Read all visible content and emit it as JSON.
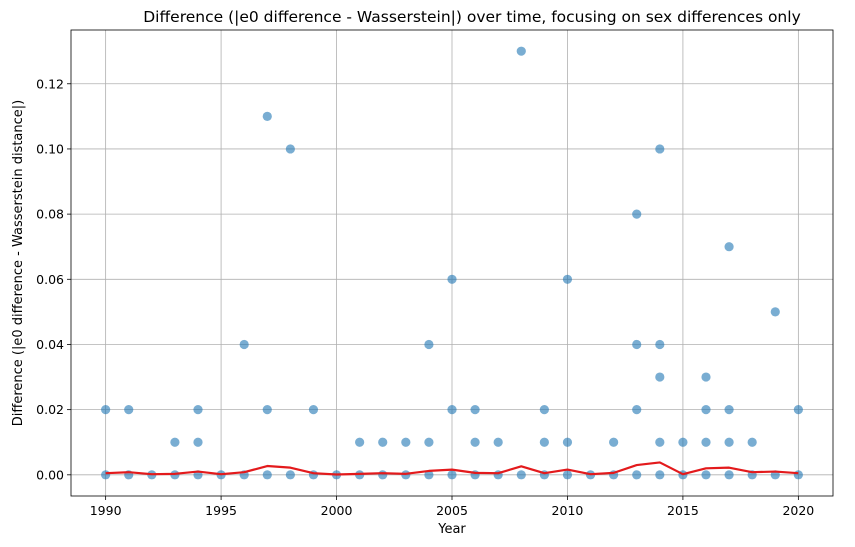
{
  "chart_data": {
    "type": "scatter",
    "title": "Difference (|e0 difference - Wasserstein|) over time, focusing on sex differences only",
    "xlabel": "Year",
    "ylabel": "Difference (|e0 difference - Wasserstein distance|)",
    "xlim": [
      1988.5,
      2021.5
    ],
    "ylim": [
      -0.0065,
      0.1365
    ],
    "xticks": [
      1990,
      1995,
      2000,
      2005,
      2010,
      2015,
      2020
    ],
    "yticks": [
      0.0,
      0.02,
      0.04,
      0.06,
      0.08,
      0.1,
      0.12
    ],
    "ytick_labels": [
      "0.00",
      "0.02",
      "0.04",
      "0.06",
      "0.08",
      "0.10",
      "0.12"
    ],
    "grid": true,
    "legend": "none",
    "colors": {
      "points": "#1f77b4",
      "mean_line": "#e31a1c"
    },
    "series": [
      {
        "type": "scatter",
        "points": [
          [
            1990,
            0
          ],
          [
            1990,
            0.02
          ],
          [
            1991,
            0
          ],
          [
            1991,
            0.02
          ],
          [
            1992,
            0
          ],
          [
            1993,
            0
          ],
          [
            1993,
            0.01
          ],
          [
            1994,
            0
          ],
          [
            1994,
            0.01
          ],
          [
            1994,
            0.02
          ],
          [
            1995,
            0
          ],
          [
            1996,
            0
          ],
          [
            1996,
            0.04
          ],
          [
            1997,
            0
          ],
          [
            1997,
            0.02
          ],
          [
            1997,
            0.11
          ],
          [
            1998,
            0
          ],
          [
            1998,
            0.1
          ],
          [
            1999,
            0
          ],
          [
            1999,
            0.02
          ],
          [
            2000,
            0
          ],
          [
            2001,
            0
          ],
          [
            2001,
            0.01
          ],
          [
            2002,
            0
          ],
          [
            2002,
            0.01
          ],
          [
            2003,
            0
          ],
          [
            2003,
            0.01
          ],
          [
            2004,
            0
          ],
          [
            2004,
            0.01
          ],
          [
            2004,
            0.04
          ],
          [
            2005,
            0
          ],
          [
            2005,
            0.02
          ],
          [
            2005,
            0.06
          ],
          [
            2006,
            0
          ],
          [
            2006,
            0.01
          ],
          [
            2006,
            0.02
          ],
          [
            2007,
            0
          ],
          [
            2007,
            0.01
          ],
          [
            2008,
            0
          ],
          [
            2008,
            0.13
          ],
          [
            2009,
            0
          ],
          [
            2009,
            0.01
          ],
          [
            2009,
            0.02
          ],
          [
            2010,
            0
          ],
          [
            2010,
            0.01
          ],
          [
            2010,
            0.06
          ],
          [
            2011,
            0
          ],
          [
            2012,
            0
          ],
          [
            2012,
            0.01
          ],
          [
            2013,
            0
          ],
          [
            2013,
            0.02
          ],
          [
            2013,
            0.04
          ],
          [
            2013,
            0.08
          ],
          [
            2014,
            0
          ],
          [
            2014,
            0.01
          ],
          [
            2014,
            0.03
          ],
          [
            2014,
            0.04
          ],
          [
            2014,
            0.1
          ],
          [
            2015,
            0
          ],
          [
            2015,
            0.01
          ],
          [
            2016,
            0
          ],
          [
            2016,
            0.01
          ],
          [
            2016,
            0.02
          ],
          [
            2016,
            0.03
          ],
          [
            2017,
            0
          ],
          [
            2017,
            0.01
          ],
          [
            2017,
            0.02
          ],
          [
            2017,
            0.07
          ],
          [
            2018,
            0
          ],
          [
            2018,
            0.01
          ],
          [
            2019,
            0
          ],
          [
            2019,
            0.05
          ],
          [
            2020,
            0
          ],
          [
            2020,
            0.02
          ]
        ]
      },
      {
        "type": "line",
        "x": [
          1990,
          1991,
          1992,
          1993,
          1994,
          1995,
          1996,
          1997,
          1998,
          1999,
          2000,
          2001,
          2002,
          2003,
          2004,
          2005,
          2006,
          2007,
          2008,
          2009,
          2010,
          2011,
          2012,
          2013,
          2014,
          2015,
          2016,
          2017,
          2018,
          2019,
          2020
        ],
        "values": [
          0.0005,
          0.0008,
          0.0002,
          0.0003,
          0.001,
          0.0002,
          0.0008,
          0.0027,
          0.0022,
          0.0005,
          0.0001,
          0.0003,
          0.0005,
          0.0003,
          0.0012,
          0.0016,
          0.0006,
          0.0005,
          0.0026,
          0.0005,
          0.0016,
          0.0002,
          0.0006,
          0.003,
          0.0038,
          0.0002,
          0.002,
          0.0022,
          0.0008,
          0.001,
          0.0005
        ]
      }
    ]
  }
}
